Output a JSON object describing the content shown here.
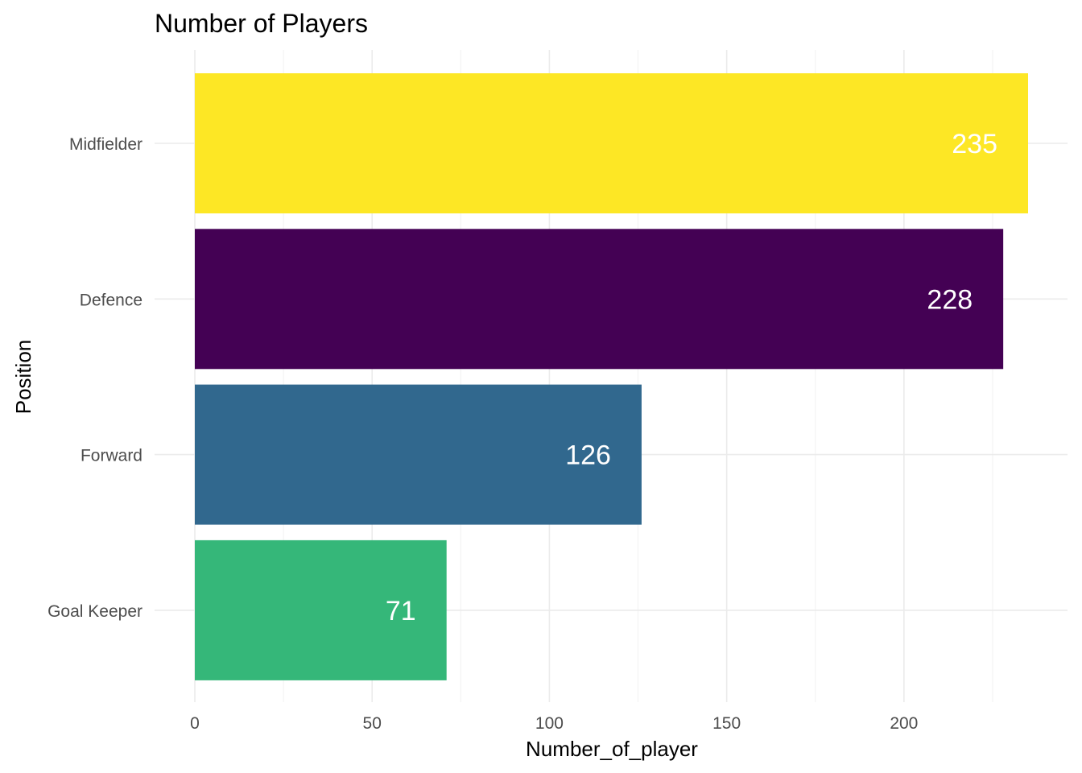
{
  "chart_data": {
    "type": "bar",
    "orientation": "horizontal",
    "title": "Number of Players",
    "xlabel": "Number_of_player",
    "ylabel": "Position",
    "categories": [
      "Midfielder",
      "Defence",
      "Forward",
      "Goal Keeper"
    ],
    "values": [
      235,
      228,
      126,
      71
    ],
    "value_labels": [
      "235",
      "228",
      "126",
      "71"
    ],
    "colors": [
      "#FDE725",
      "#440154",
      "#31688E",
      "#35B779"
    ],
    "xlim": [
      0,
      235
    ],
    "xticks": [
      0,
      50,
      100,
      150,
      200
    ],
    "xtick_labels": [
      "0",
      "50",
      "100",
      "150",
      "200"
    ],
    "grid": true,
    "legend": "none"
  }
}
